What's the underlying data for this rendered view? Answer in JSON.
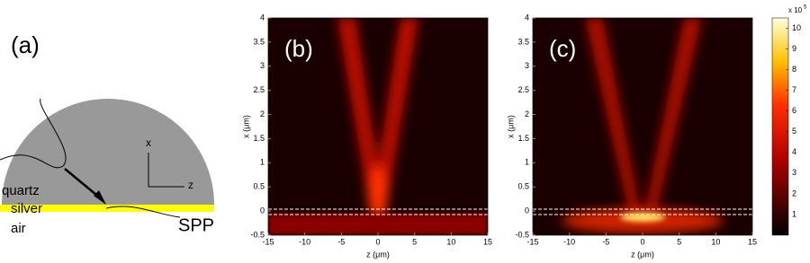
{
  "panel_a": {
    "label": "(a)",
    "quartz": "quartz",
    "silver": "silver",
    "air": "air",
    "spp": "SPP",
    "axis_x": "x",
    "axis_z": "z"
  },
  "chart_data": [
    {
      "type": "heatmap",
      "panel_label": "(b)",
      "x_label": "z (μm)",
      "y_label": "x (μm)",
      "xlim": [
        -15,
        15
      ],
      "xticks": [
        -15,
        -10,
        -5,
        0,
        5,
        10,
        15
      ],
      "ylim": [
        -0.5,
        4
      ],
      "yticks": [
        -0.5,
        0,
        0.5,
        1,
        1.5,
        2,
        2.5,
        3,
        3.5,
        4
      ]
    },
    {
      "type": "heatmap",
      "panel_label": "(c)",
      "x_label": "z (μm)",
      "y_label": "x (μm)",
      "xlim": [
        -15,
        15
      ],
      "xticks": [
        -15,
        -10,
        -5,
        0,
        5,
        10,
        15
      ],
      "ylim": [
        -0.5,
        4
      ],
      "yticks": [
        -0.5,
        0,
        0.5,
        1,
        1.5,
        2,
        2.5,
        3,
        3.5,
        4
      ]
    },
    {
      "type": "colorbar",
      "title": "x 10",
      "title_exponent": "5",
      "ylim": [
        0,
        10.5
      ],
      "yticks": [
        1,
        2,
        3,
        4,
        5,
        6,
        7,
        8,
        9,
        10
      ]
    }
  ]
}
